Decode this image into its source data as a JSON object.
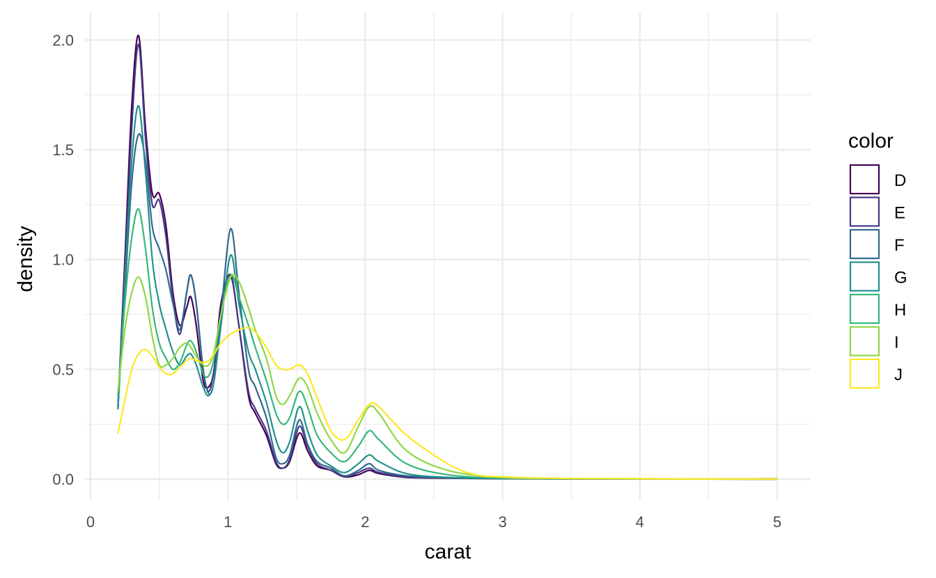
{
  "chart_data": {
    "type": "line",
    "title": "",
    "xlabel": "carat",
    "ylabel": "density",
    "xlim": [
      0,
      5.25
    ],
    "ylim": [
      -0.09,
      2.14
    ],
    "xticks": [
      "0",
      "1",
      "2",
      "3",
      "4",
      "5"
    ],
    "yticks": [
      "0.0",
      "0.5",
      "1.0",
      "1.5",
      "2.0"
    ],
    "grid": true,
    "legend": {
      "title": "color",
      "position": "right"
    },
    "series": [
      {
        "name": "D",
        "color": "#440154",
        "points": [
          [
            0.2,
            0.33
          ],
          [
            0.25,
            1.0
          ],
          [
            0.3,
            1.7
          ],
          [
            0.35,
            2.02
          ],
          [
            0.4,
            1.6
          ],
          [
            0.45,
            1.3
          ],
          [
            0.5,
            1.3
          ],
          [
            0.55,
            1.15
          ],
          [
            0.6,
            0.85
          ],
          [
            0.65,
            0.7
          ],
          [
            0.7,
            0.78
          ],
          [
            0.73,
            0.83
          ],
          [
            0.77,
            0.7
          ],
          [
            0.82,
            0.45
          ],
          [
            0.86,
            0.42
          ],
          [
            0.9,
            0.5
          ],
          [
            0.95,
            0.8
          ],
          [
            1.02,
            0.93
          ],
          [
            1.08,
            0.7
          ],
          [
            1.15,
            0.38
          ],
          [
            1.2,
            0.3
          ],
          [
            1.28,
            0.2
          ],
          [
            1.35,
            0.07
          ],
          [
            1.4,
            0.05
          ],
          [
            1.45,
            0.08
          ],
          [
            1.52,
            0.21
          ],
          [
            1.58,
            0.13
          ],
          [
            1.65,
            0.06
          ],
          [
            1.75,
            0.04
          ],
          [
            1.85,
            0.01
          ],
          [
            1.95,
            0.02
          ],
          [
            2.03,
            0.04
          ],
          [
            2.1,
            0.025
          ],
          [
            2.3,
            0.008
          ],
          [
            2.6,
            0.004
          ],
          [
            3.0,
            0.002
          ],
          [
            3.5,
            0.001
          ],
          [
            5.0,
            0.0
          ]
        ]
      },
      {
        "name": "E",
        "color": "#443983",
        "points": [
          [
            0.2,
            0.33
          ],
          [
            0.25,
            0.95
          ],
          [
            0.3,
            1.6
          ],
          [
            0.35,
            1.98
          ],
          [
            0.4,
            1.55
          ],
          [
            0.45,
            1.25
          ],
          [
            0.5,
            1.27
          ],
          [
            0.55,
            1.1
          ],
          [
            0.6,
            0.82
          ],
          [
            0.65,
            0.66
          ],
          [
            0.7,
            0.85
          ],
          [
            0.73,
            0.93
          ],
          [
            0.77,
            0.8
          ],
          [
            0.82,
            0.5
          ],
          [
            0.86,
            0.4
          ],
          [
            0.9,
            0.5
          ],
          [
            0.95,
            0.75
          ],
          [
            1.02,
            0.92
          ],
          [
            1.08,
            0.7
          ],
          [
            1.15,
            0.4
          ],
          [
            1.2,
            0.32
          ],
          [
            1.28,
            0.22
          ],
          [
            1.35,
            0.08
          ],
          [
            1.4,
            0.05
          ],
          [
            1.45,
            0.09
          ],
          [
            1.52,
            0.24
          ],
          [
            1.58,
            0.15
          ],
          [
            1.65,
            0.07
          ],
          [
            1.75,
            0.04
          ],
          [
            1.85,
            0.01
          ],
          [
            1.95,
            0.03
          ],
          [
            2.03,
            0.05
          ],
          [
            2.1,
            0.03
          ],
          [
            2.3,
            0.01
          ],
          [
            2.6,
            0.004
          ],
          [
            3.0,
            0.003
          ],
          [
            3.5,
            0.001
          ],
          [
            5.0,
            0.0
          ]
        ]
      },
      {
        "name": "F",
        "color": "#31688e",
        "points": [
          [
            0.2,
            0.33
          ],
          [
            0.25,
            0.85
          ],
          [
            0.3,
            1.35
          ],
          [
            0.35,
            1.57
          ],
          [
            0.4,
            1.45
          ],
          [
            0.45,
            1.15
          ],
          [
            0.5,
            1.05
          ],
          [
            0.55,
            0.95
          ],
          [
            0.6,
            0.8
          ],
          [
            0.65,
            0.68
          ],
          [
            0.7,
            0.85
          ],
          [
            0.73,
            0.93
          ],
          [
            0.77,
            0.8
          ],
          [
            0.82,
            0.5
          ],
          [
            0.86,
            0.39
          ],
          [
            0.9,
            0.45
          ],
          [
            0.95,
            0.75
          ],
          [
            1.02,
            1.14
          ],
          [
            1.08,
            0.85
          ],
          [
            1.15,
            0.5
          ],
          [
            1.2,
            0.42
          ],
          [
            1.28,
            0.28
          ],
          [
            1.35,
            0.1
          ],
          [
            1.4,
            0.07
          ],
          [
            1.45,
            0.11
          ],
          [
            1.52,
            0.27
          ],
          [
            1.58,
            0.16
          ],
          [
            1.65,
            0.08
          ],
          [
            1.75,
            0.05
          ],
          [
            1.85,
            0.015
          ],
          [
            1.95,
            0.04
          ],
          [
            2.03,
            0.07
          ],
          [
            2.1,
            0.04
          ],
          [
            2.3,
            0.015
          ],
          [
            2.6,
            0.006
          ],
          [
            3.0,
            0.003
          ],
          [
            3.5,
            0.001
          ],
          [
            5.0,
            0.0
          ]
        ]
      },
      {
        "name": "G",
        "color": "#21908c",
        "points": [
          [
            0.2,
            0.32
          ],
          [
            0.25,
            0.9
          ],
          [
            0.3,
            1.45
          ],
          [
            0.35,
            1.7
          ],
          [
            0.4,
            1.4
          ],
          [
            0.45,
            1.0
          ],
          [
            0.5,
            0.8
          ],
          [
            0.55,
            0.68
          ],
          [
            0.6,
            0.58
          ],
          [
            0.65,
            0.52
          ],
          [
            0.7,
            0.56
          ],
          [
            0.73,
            0.57
          ],
          [
            0.77,
            0.52
          ],
          [
            0.82,
            0.42
          ],
          [
            0.86,
            0.38
          ],
          [
            0.9,
            0.45
          ],
          [
            0.95,
            0.7
          ],
          [
            1.02,
            1.02
          ],
          [
            1.08,
            0.8
          ],
          [
            1.15,
            0.58
          ],
          [
            1.2,
            0.5
          ],
          [
            1.28,
            0.35
          ],
          [
            1.35,
            0.18
          ],
          [
            1.4,
            0.12
          ],
          [
            1.45,
            0.17
          ],
          [
            1.52,
            0.33
          ],
          [
            1.58,
            0.22
          ],
          [
            1.65,
            0.11
          ],
          [
            1.75,
            0.06
          ],
          [
            1.85,
            0.03
          ],
          [
            1.95,
            0.07
          ],
          [
            2.03,
            0.11
          ],
          [
            2.1,
            0.08
          ],
          [
            2.3,
            0.025
          ],
          [
            2.6,
            0.008
          ],
          [
            3.0,
            0.003
          ],
          [
            3.5,
            0.001
          ],
          [
            5.0,
            0.0
          ]
        ]
      },
      {
        "name": "H",
        "color": "#35b779",
        "points": [
          [
            0.2,
            0.38
          ],
          [
            0.25,
            0.8
          ],
          [
            0.3,
            1.1
          ],
          [
            0.35,
            1.23
          ],
          [
            0.4,
            1.05
          ],
          [
            0.45,
            0.78
          ],
          [
            0.5,
            0.62
          ],
          [
            0.55,
            0.55
          ],
          [
            0.6,
            0.5
          ],
          [
            0.65,
            0.53
          ],
          [
            0.7,
            0.61
          ],
          [
            0.73,
            0.63
          ],
          [
            0.77,
            0.58
          ],
          [
            0.82,
            0.48
          ],
          [
            0.86,
            0.47
          ],
          [
            0.9,
            0.55
          ],
          [
            0.95,
            0.75
          ],
          [
            1.02,
            0.93
          ],
          [
            1.08,
            0.83
          ],
          [
            1.15,
            0.7
          ],
          [
            1.2,
            0.6
          ],
          [
            1.28,
            0.45
          ],
          [
            1.35,
            0.3
          ],
          [
            1.4,
            0.25
          ],
          [
            1.45,
            0.28
          ],
          [
            1.52,
            0.4
          ],
          [
            1.58,
            0.33
          ],
          [
            1.65,
            0.2
          ],
          [
            1.75,
            0.12
          ],
          [
            1.85,
            0.08
          ],
          [
            1.95,
            0.15
          ],
          [
            2.03,
            0.22
          ],
          [
            2.1,
            0.18
          ],
          [
            2.3,
            0.07
          ],
          [
            2.6,
            0.02
          ],
          [
            3.0,
            0.005
          ],
          [
            3.5,
            0.002
          ],
          [
            5.0,
            0.0
          ]
        ]
      },
      {
        "name": "I",
        "color": "#8fd744",
        "points": [
          [
            0.2,
            0.4
          ],
          [
            0.25,
            0.68
          ],
          [
            0.3,
            0.85
          ],
          [
            0.35,
            0.92
          ],
          [
            0.4,
            0.83
          ],
          [
            0.45,
            0.65
          ],
          [
            0.5,
            0.52
          ],
          [
            0.55,
            0.52
          ],
          [
            0.6,
            0.55
          ],
          [
            0.65,
            0.6
          ],
          [
            0.7,
            0.62
          ],
          [
            0.73,
            0.6
          ],
          [
            0.77,
            0.56
          ],
          [
            0.82,
            0.52
          ],
          [
            0.86,
            0.52
          ],
          [
            0.9,
            0.58
          ],
          [
            0.95,
            0.75
          ],
          [
            1.02,
            0.92
          ],
          [
            1.08,
            0.9
          ],
          [
            1.15,
            0.78
          ],
          [
            1.2,
            0.68
          ],
          [
            1.28,
            0.55
          ],
          [
            1.35,
            0.38
          ],
          [
            1.4,
            0.34
          ],
          [
            1.45,
            0.38
          ],
          [
            1.52,
            0.46
          ],
          [
            1.58,
            0.42
          ],
          [
            1.65,
            0.3
          ],
          [
            1.75,
            0.18
          ],
          [
            1.85,
            0.12
          ],
          [
            1.95,
            0.24
          ],
          [
            2.03,
            0.33
          ],
          [
            2.1,
            0.3
          ],
          [
            2.3,
            0.13
          ],
          [
            2.6,
            0.04
          ],
          [
            3.0,
            0.008
          ],
          [
            3.5,
            0.003
          ],
          [
            5.0,
            0.0
          ]
        ]
      },
      {
        "name": "J",
        "color": "#fde725",
        "points": [
          [
            0.2,
            0.21
          ],
          [
            0.25,
            0.36
          ],
          [
            0.3,
            0.5
          ],
          [
            0.35,
            0.57
          ],
          [
            0.4,
            0.59
          ],
          [
            0.45,
            0.56
          ],
          [
            0.5,
            0.51
          ],
          [
            0.55,
            0.48
          ],
          [
            0.6,
            0.48
          ],
          [
            0.65,
            0.51
          ],
          [
            0.7,
            0.54
          ],
          [
            0.73,
            0.55
          ],
          [
            0.77,
            0.54
          ],
          [
            0.82,
            0.53
          ],
          [
            0.86,
            0.54
          ],
          [
            0.9,
            0.57
          ],
          [
            0.95,
            0.62
          ],
          [
            1.02,
            0.66
          ],
          [
            1.08,
            0.68
          ],
          [
            1.15,
            0.69
          ],
          [
            1.2,
            0.67
          ],
          [
            1.28,
            0.6
          ],
          [
            1.35,
            0.52
          ],
          [
            1.4,
            0.5
          ],
          [
            1.45,
            0.5
          ],
          [
            1.52,
            0.52
          ],
          [
            1.58,
            0.48
          ],
          [
            1.65,
            0.37
          ],
          [
            1.75,
            0.22
          ],
          [
            1.85,
            0.18
          ],
          [
            1.95,
            0.27
          ],
          [
            2.03,
            0.34
          ],
          [
            2.1,
            0.33
          ],
          [
            2.3,
            0.2
          ],
          [
            2.6,
            0.07
          ],
          [
            2.8,
            0.02
          ],
          [
            3.0,
            0.01
          ],
          [
            3.5,
            0.003
          ],
          [
            5.0,
            0.0
          ]
        ]
      }
    ]
  }
}
